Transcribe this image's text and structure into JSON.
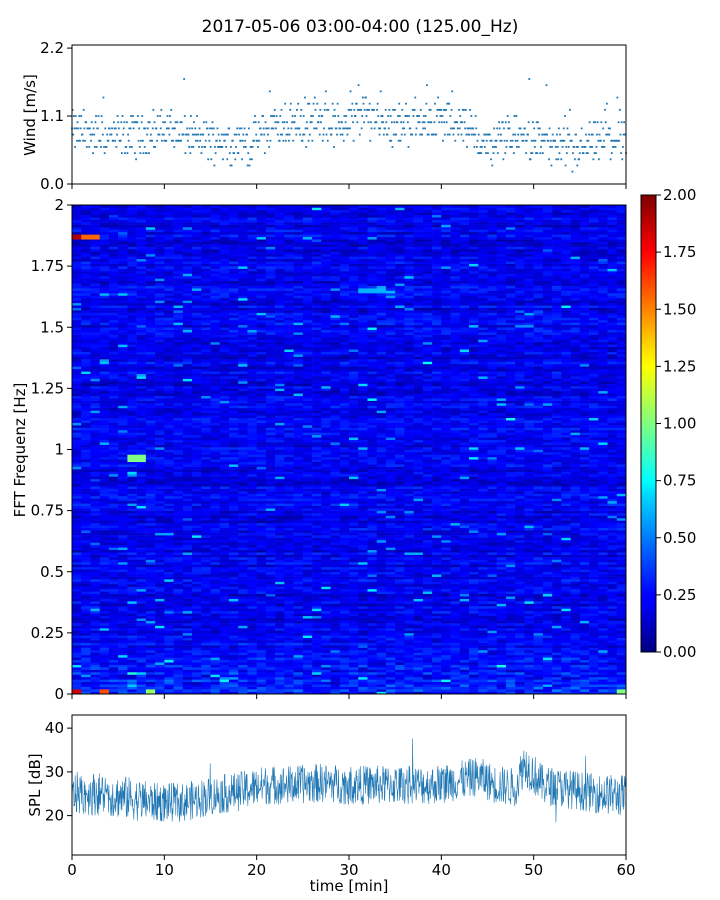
{
  "chart_data": {
    "title": "2017-05-06 03:00-04:00 (125.00_Hz)",
    "panels": [
      {
        "type": "scatter",
        "name": "wind-panel",
        "ylabel": "Wind [m/s]",
        "xlim": [
          0,
          60
        ],
        "ylim": [
          0.0,
          2.25
        ],
        "yticks": [
          0.0,
          1.1,
          2.2
        ],
        "ytick_labels": [
          "0.0",
          "1.1",
          "2.2"
        ],
        "x_tick_labels_visible": false,
        "y_levels_step": 0.1,
        "color": "#1f77b4",
        "trend": [
          {
            "x": 0,
            "mean": 0.85
          },
          {
            "x": 5,
            "mean": 0.75
          },
          {
            "x": 8,
            "mean": 0.82
          },
          {
            "x": 10,
            "mean": 0.9
          },
          {
            "x": 13,
            "mean": 0.75
          },
          {
            "x": 16,
            "mean": 0.72
          },
          {
            "x": 19,
            "mean": 0.65
          },
          {
            "x": 22,
            "mean": 0.95
          },
          {
            "x": 26,
            "mean": 1.0
          },
          {
            "x": 29,
            "mean": 0.95
          },
          {
            "x": 32,
            "mean": 1.15
          },
          {
            "x": 35,
            "mean": 0.95
          },
          {
            "x": 38,
            "mean": 1.05
          },
          {
            "x": 42,
            "mean": 1.0
          },
          {
            "x": 45,
            "mean": 0.6
          },
          {
            "x": 48,
            "mean": 0.8
          },
          {
            "x": 51,
            "mean": 0.7
          },
          {
            "x": 54,
            "mean": 0.5
          },
          {
            "x": 57,
            "mean": 0.7
          },
          {
            "x": 60,
            "mean": 0.75
          }
        ]
      },
      {
        "type": "heatmap",
        "name": "spectrogram-panel",
        "ylabel": "FFT Frequenz [Hz]",
        "xlim": [
          0,
          60
        ],
        "ylim": [
          0,
          2
        ],
        "yticks": [
          0,
          0.25,
          0.5,
          0.75,
          1,
          1.25,
          1.5,
          1.75,
          2
        ],
        "ytick_labels": [
          "0",
          "0.25",
          "0.5",
          "0.75",
          "1",
          "1.25",
          "1.5",
          "1.75",
          "2"
        ],
        "x_tick_labels_visible": false,
        "colormap": "jet",
        "colorbar": {
          "range": [
            0.0,
            2.0
          ],
          "ticks": [
            0.0,
            0.25,
            0.5,
            0.75,
            1.0,
            1.25,
            1.5,
            1.75,
            2.0
          ],
          "tick_labels": [
            "0.00",
            "0.25",
            "0.50",
            "0.75",
            "1.00",
            "1.25",
            "1.50",
            "1.75",
            "2.00"
          ]
        },
        "background_level": 0.22,
        "hotspots": [
          {
            "t": [
              0,
              1
            ],
            "f": [
              1.86,
              1.88
            ],
            "value": 1.9
          },
          {
            "t": [
              1,
              3
            ],
            "f": [
              1.86,
              1.88
            ],
            "value": 1.55
          },
          {
            "t": [
              6,
              8
            ],
            "f": [
              0.95,
              0.98
            ],
            "value": 1.0
          },
          {
            "t": [
              0,
              1
            ],
            "f": [
              0,
              0.02
            ],
            "value": 1.85
          },
          {
            "t": [
              3,
              4
            ],
            "f": [
              0,
              0.02
            ],
            "value": 1.6
          },
          {
            "t": [
              8,
              9
            ],
            "f": [
              0,
              0.02
            ],
            "value": 1.05
          },
          {
            "t": [
              31,
              34
            ],
            "f": [
              1.64,
              1.66
            ],
            "value": 0.6
          },
          {
            "t": [
              59,
              60
            ],
            "f": [
              0,
              0.02
            ],
            "value": 1.0
          }
        ]
      },
      {
        "type": "line",
        "name": "spl-panel",
        "ylabel": "SPL [dB]",
        "xlabel": "time [min]",
        "xlim": [
          0,
          60
        ],
        "ylim": [
          11,
          43
        ],
        "yticks": [
          20,
          30,
          40
        ],
        "ytick_labels": [
          "20",
          "30",
          "40"
        ],
        "xticks": [
          0,
          10,
          20,
          30,
          40,
          50,
          60
        ],
        "xtick_labels": [
          "0",
          "10",
          "20",
          "30",
          "40",
          "50",
          "60"
        ],
        "color": "#1f77b4",
        "envelope": [
          {
            "x": 0,
            "mean": 25,
            "spread": 5
          },
          {
            "x": 3,
            "mean": 25,
            "spread": 5
          },
          {
            "x": 6,
            "mean": 24,
            "spread": 5
          },
          {
            "x": 9,
            "mean": 23,
            "spread": 4.5
          },
          {
            "x": 12,
            "mean": 23,
            "spread": 4.5
          },
          {
            "x": 15,
            "mean": 24.5,
            "spread": 4.5
          },
          {
            "x": 18,
            "mean": 25.5,
            "spread": 4.5
          },
          {
            "x": 21,
            "mean": 27,
            "spread": 4.5
          },
          {
            "x": 24,
            "mean": 27,
            "spread": 4.5
          },
          {
            "x": 27,
            "mean": 27.5,
            "spread": 4.5
          },
          {
            "x": 30,
            "mean": 27,
            "spread": 4.5
          },
          {
            "x": 33,
            "mean": 27,
            "spread": 4.5
          },
          {
            "x": 36,
            "mean": 27,
            "spread": 4.5
          },
          {
            "x": 39,
            "mean": 27,
            "spread": 4.5
          },
          {
            "x": 42,
            "mean": 28,
            "spread": 4.5
          },
          {
            "x": 44,
            "mean": 29,
            "spread": 4.5
          },
          {
            "x": 46,
            "mean": 27,
            "spread": 4.5
          },
          {
            "x": 48,
            "mean": 26.5,
            "spread": 4.5
          },
          {
            "x": 49,
            "mean": 32,
            "spread": 5
          },
          {
            "x": 51,
            "mean": 27,
            "spread": 4.5
          },
          {
            "x": 54,
            "mean": 26,
            "spread": 4.5
          },
          {
            "x": 57,
            "mean": 25,
            "spread": 4.5
          },
          {
            "x": 60,
            "mean": 24.5,
            "spread": 5
          }
        ]
      }
    ]
  }
}
